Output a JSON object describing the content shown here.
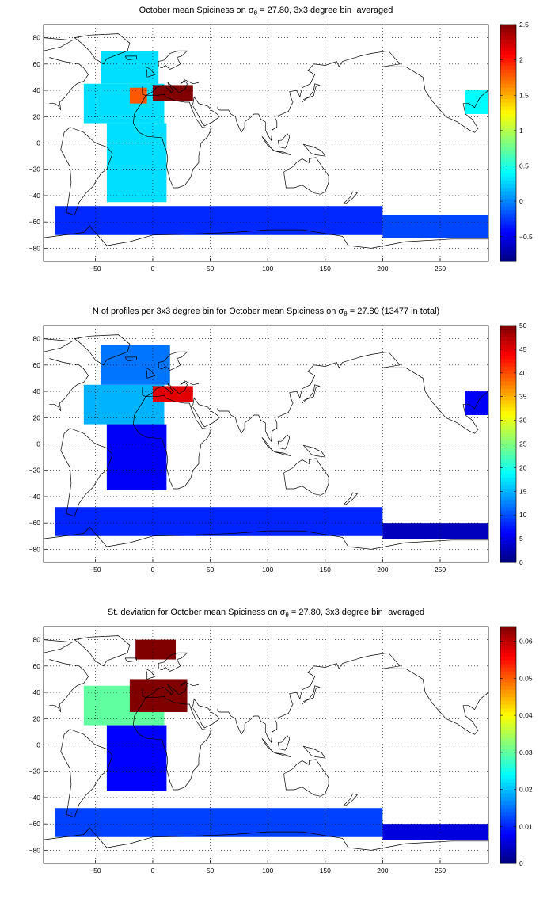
{
  "figure": {
    "panels": [
      {
        "title_pre": "October mean Spiciness on σ",
        "title_sub": "θ",
        "title_post": " = 27.80, 3x3 degree bin−averaged"
      },
      {
        "title_pre": "N of profiles per 3x3 degree bin for October mean Spiciness on σ",
        "title_sub": "θ",
        "title_post": " = 27.80 (13477 in total)"
      },
      {
        "title_pre": "St. deviation for October mean Spiciness on σ",
        "title_sub": "θ",
        "title_post": " = 27.80, 3x3 degree bin−averaged"
      }
    ]
  },
  "chart_data": [
    {
      "type": "heatmap",
      "title": "October mean Spiciness on σθ = 27.80, 3x3 degree bin−averaged",
      "xlabel": "",
      "ylabel": "",
      "xlim": [
        -95,
        292
      ],
      "ylim": [
        -90,
        90
      ],
      "x_ticks": [
        -50,
        0,
        50,
        100,
        150,
        200,
        250
      ],
      "y_ticks": [
        -80,
        -60,
        -40,
        -20,
        0,
        20,
        40,
        60,
        80
      ],
      "grid": true,
      "colormap": "jet",
      "colorbar": {
        "min": -0.85,
        "max": 2.5,
        "ticks": [
          -0.5,
          0,
          0.5,
          1,
          1.5,
          2,
          2.5
        ]
      },
      "regions": [
        {
          "lon": [
            -60,
            10
          ],
          "lat": [
            15,
            45
          ],
          "value": 0.3
        },
        {
          "lon": [
            -45,
            5
          ],
          "lat": [
            45,
            70
          ],
          "value": 0.3
        },
        {
          "lon": [
            -40,
            12
          ],
          "lat": [
            -45,
            15
          ],
          "value": 0.3
        },
        {
          "lon": [
            -20,
            -5
          ],
          "lat": [
            30,
            42
          ],
          "value": 1.8
        },
        {
          "lon": [
            0,
            35
          ],
          "lat": [
            32,
            44
          ],
          "value": 2.5
        },
        {
          "lon": [
            -85,
            200
          ],
          "lat": [
            -70,
            -48
          ],
          "value": -0.3
        },
        {
          "lon": [
            200,
            292
          ],
          "lat": [
            -72,
            -55
          ],
          "value": -0.2
        },
        {
          "lon": [
            272,
            292
          ],
          "lat": [
            22,
            40
          ],
          "value": 0.4
        }
      ]
    },
    {
      "type": "heatmap",
      "title": "N of profiles per 3x3 degree bin for October mean Spiciness on σθ = 27.80 (13477 in total)",
      "xlabel": "",
      "ylabel": "",
      "xlim": [
        -95,
        292
      ],
      "ylim": [
        -90,
        90
      ],
      "x_ticks": [
        -50,
        0,
        50,
        100,
        150,
        200,
        250
      ],
      "y_ticks": [
        -80,
        -60,
        -40,
        -20,
        0,
        20,
        40,
        60,
        80
      ],
      "grid": true,
      "colormap": "jet",
      "colorbar": {
        "min": 0,
        "max": 50,
        "ticks": [
          0,
          5,
          10,
          15,
          20,
          25,
          30,
          35,
          40,
          45,
          50
        ]
      },
      "total_profiles": 13477,
      "regions": [
        {
          "lon": [
            -60,
            10
          ],
          "lat": [
            15,
            45
          ],
          "value": 15
        },
        {
          "lon": [
            -45,
            15
          ],
          "lat": [
            45,
            75
          ],
          "value": 12
        },
        {
          "lon": [
            -40,
            12
          ],
          "lat": [
            -35,
            15
          ],
          "value": 6
        },
        {
          "lon": [
            0,
            35
          ],
          "lat": [
            32,
            44
          ],
          "value": 45
        },
        {
          "lon": [
            -85,
            200
          ],
          "lat": [
            -70,
            -48
          ],
          "value": 8
        },
        {
          "lon": [
            200,
            292
          ],
          "lat": [
            -72,
            -60
          ],
          "value": 3
        },
        {
          "lon": [
            272,
            292
          ],
          "lat": [
            22,
            40
          ],
          "value": 6
        }
      ]
    },
    {
      "type": "heatmap",
      "title": "St. deviation for October mean Spiciness on σθ = 27.80, 3x3 degree bin−averaged",
      "xlabel": "",
      "ylabel": "",
      "xlim": [
        -95,
        292
      ],
      "ylim": [
        -90,
        90
      ],
      "x_ticks": [
        -50,
        0,
        50,
        100,
        150,
        200,
        250
      ],
      "y_ticks": [
        -80,
        -60,
        -40,
        -20,
        0,
        20,
        40,
        60,
        80
      ],
      "grid": true,
      "colormap": "jet",
      "colorbar": {
        "min": 0,
        "max": 0.064,
        "ticks": [
          0,
          0.01,
          0.02,
          0.03,
          0.04,
          0.05,
          0.06
        ]
      },
      "regions": [
        {
          "lon": [
            -60,
            10
          ],
          "lat": [
            15,
            45
          ],
          "value": 0.03
        },
        {
          "lon": [
            -20,
            30
          ],
          "lat": [
            25,
            50
          ],
          "value": 0.064
        },
        {
          "lon": [
            -15,
            20
          ],
          "lat": [
            65,
            80
          ],
          "value": 0.064
        },
        {
          "lon": [
            -40,
            12
          ],
          "lat": [
            -35,
            15
          ],
          "value": 0.008
        },
        {
          "lon": [
            -85,
            200
          ],
          "lat": [
            -70,
            -48
          ],
          "value": 0.012
        },
        {
          "lon": [
            200,
            292
          ],
          "lat": [
            -72,
            -60
          ],
          "value": 0.006
        }
      ]
    }
  ]
}
